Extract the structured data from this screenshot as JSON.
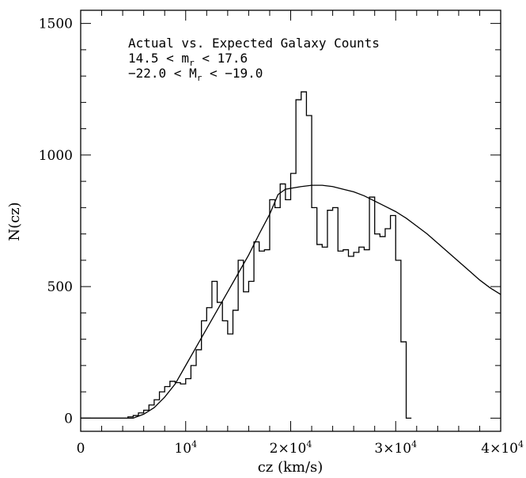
{
  "chart_data": {
    "type": "line",
    "xlabel": "cz (km/s)",
    "ylabel": "N(cz)",
    "xlim": [
      0,
      40000
    ],
    "ylim": [
      -50,
      1550
    ],
    "x_ticks": [
      {
        "value": 0,
        "label": "0"
      },
      {
        "value": 10000,
        "label": "10",
        "exp": "4"
      },
      {
        "value": 20000,
        "label": "2×10",
        "exp": "4"
      },
      {
        "value": 30000,
        "label": "3×10",
        "exp": "4"
      },
      {
        "value": 40000,
        "label": "4×10",
        "exp": "4"
      }
    ],
    "y_ticks": [
      {
        "value": 0,
        "label": "0"
      },
      {
        "value": 500,
        "label": "500"
      },
      {
        "value": 1000,
        "label": "1000"
      },
      {
        "value": 1500,
        "label": "1500"
      }
    ],
    "annotation": {
      "line1": "Actual vs. Expected Galaxy Counts",
      "line2_pre": "14.5 < m",
      "line2_sub": "r",
      "line2_post": " < 17.6",
      "line3_pre": "−22.0 < M",
      "line3_sub": "r",
      "line3_post": " < −19.0"
    },
    "series": [
      {
        "style": "histogram",
        "bin_width": 500,
        "x_start": 0,
        "values": [
          0,
          0,
          0,
          0,
          0,
          0,
          0,
          0,
          0,
          5,
          10,
          20,
          30,
          50,
          70,
          100,
          120,
          140,
          135,
          130,
          150,
          200,
          260,
          370,
          420,
          520,
          440,
          370,
          320,
          410,
          600,
          480,
          520,
          670,
          635,
          640,
          830,
          800,
          890,
          830,
          930,
          1210,
          1240,
          1150,
          800,
          660,
          650,
          790,
          800,
          635,
          640,
          615,
          630,
          650,
          640,
          840,
          700,
          690,
          720,
          770,
          600,
          290,
          0
        ]
      },
      {
        "style": "smooth",
        "points": [
          [
            0,
            0
          ],
          [
            5000,
            0
          ],
          [
            6000,
            15
          ],
          [
            7000,
            40
          ],
          [
            8000,
            80
          ],
          [
            9000,
            130
          ],
          [
            10000,
            200
          ],
          [
            11000,
            270
          ],
          [
            12000,
            340
          ],
          [
            13000,
            410
          ],
          [
            14000,
            480
          ],
          [
            15000,
            550
          ],
          [
            16000,
            620
          ],
          [
            17000,
            700
          ],
          [
            18000,
            775
          ],
          [
            18800,
            850
          ],
          [
            19500,
            870
          ],
          [
            21000,
            880
          ],
          [
            22000,
            885
          ],
          [
            23000,
            885
          ],
          [
            24000,
            880
          ],
          [
            25000,
            870
          ],
          [
            26000,
            860
          ],
          [
            27000,
            845
          ],
          [
            28000,
            825
          ],
          [
            29000,
            805
          ],
          [
            30000,
            785
          ],
          [
            31000,
            760
          ],
          [
            32000,
            730
          ],
          [
            33000,
            700
          ],
          [
            34000,
            665
          ],
          [
            35000,
            630
          ],
          [
            36000,
            595
          ],
          [
            37000,
            560
          ],
          [
            38000,
            525
          ],
          [
            39000,
            495
          ],
          [
            40000,
            470
          ]
        ]
      }
    ]
  }
}
